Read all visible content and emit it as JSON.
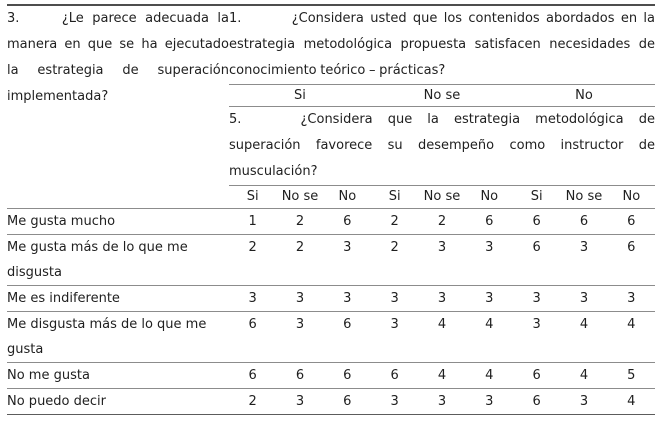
{
  "table": {
    "question_3": {
      "number": "3.",
      "lines": [
        "¿Le parece adecuada la",
        "manera en que se ha ejecutado",
        "la estrategia de superación",
        "implementada?"
      ]
    },
    "question_1": {
      "number": "1.",
      "lines": [
        "¿Considera usted que los contenidos abordados en la",
        "estrategia metodológica propuesta satisfacen necesidades de",
        "conocimiento teórico – prácticas?"
      ]
    },
    "question_1_options": [
      "Si",
      "No se",
      "No"
    ],
    "question_5": {
      "number": "5.",
      "lines": [
        "¿Considera que la estrategia metodológica de",
        "superación favorece su desempeño como instructor de",
        "musculación?"
      ]
    },
    "answer_headers": [
      "Si",
      "No se",
      "No",
      "Si",
      "No se",
      "No",
      "Si",
      "No se",
      "No"
    ],
    "rows": [
      {
        "label": "Me gusta mucho",
        "values": [
          1,
          2,
          6,
          2,
          2,
          6,
          6,
          6,
          6
        ]
      },
      {
        "label": "Me gusta más de lo que me disgusta",
        "values": [
          2,
          2,
          3,
          2,
          3,
          3,
          6,
          3,
          6
        ]
      },
      {
        "label": "Me es indiferente",
        "values": [
          3,
          3,
          3,
          3,
          3,
          3,
          3,
          3,
          3
        ]
      },
      {
        "label": "Me disgusta más de lo que me gusta",
        "values": [
          6,
          3,
          6,
          3,
          4,
          4,
          3,
          4,
          4
        ]
      },
      {
        "label": "No me gusta",
        "values": [
          6,
          6,
          6,
          6,
          4,
          4,
          6,
          4,
          5
        ]
      },
      {
        "label": "No puedo decir",
        "values": [
          2,
          3,
          6,
          3,
          3,
          3,
          6,
          3,
          4
        ]
      }
    ]
  },
  "colors": {
    "text": "#1f1f1f",
    "rule": "#8c8c8c",
    "top_rule": "#4d4d4d",
    "background": "#ffffff"
  }
}
